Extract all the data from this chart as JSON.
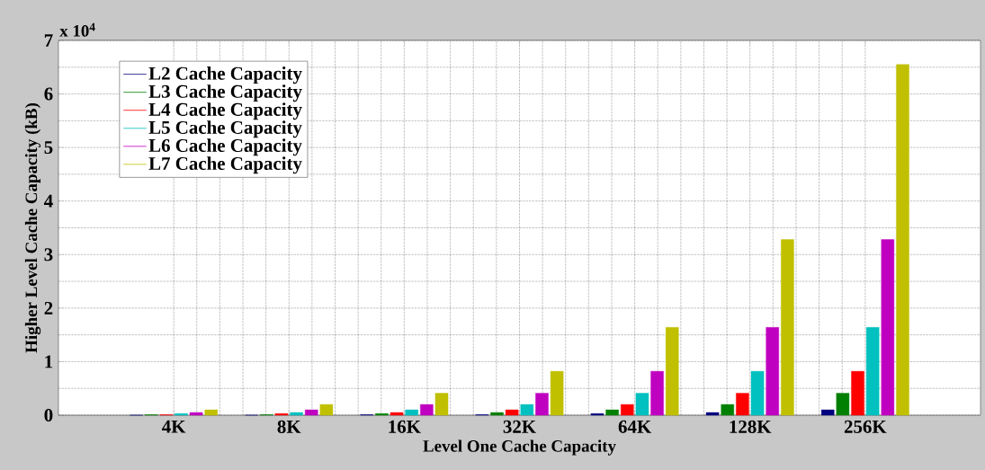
{
  "chart_data": {
    "type": "bar",
    "xlabel": "Level One Cache Capacity",
    "ylabel": "Higher Level Cache Capacity (kB)",
    "annotations": [
      "x 10$^{4}$"
    ],
    "categories": [
      "4K",
      "8K",
      "16K",
      "32K",
      "64K",
      "128K",
      "256K"
    ],
    "series": [
      {
        "name": "L2 Cache Capacity",
        "color": "#000080",
        "values": [
          0,
          0,
          0.01,
          0.01,
          0.03,
          0.05,
          0.1
        ]
      },
      {
        "name": "L3 Cache Capacity",
        "color": "#008000",
        "values": [
          0.01,
          0.01,
          0.03,
          0.05,
          0.1,
          0.2,
          0.41
        ]
      },
      {
        "name": "L4 Cache Capacity",
        "color": "#ff0000",
        "values": [
          0.01,
          0.03,
          0.05,
          0.1,
          0.2,
          0.41,
          0.82
        ]
      },
      {
        "name": "L5 Cache Capacity",
        "color": "#00c0c0",
        "values": [
          0.03,
          0.05,
          0.1,
          0.2,
          0.41,
          0.82,
          1.64
        ]
      },
      {
        "name": "L6 Cache Capacity",
        "color": "#c000c0",
        "values": [
          0.05,
          0.1,
          0.2,
          0.41,
          0.82,
          1.64,
          3.28
        ]
      },
      {
        "name": "L7 Cache Capacity",
        "color": "#c0c000",
        "values": [
          0.1,
          0.2,
          0.41,
          0.82,
          1.64,
          3.28,
          6.55
        ]
      }
    ],
    "ylim": [
      0,
      7
    ],
    "yticks": [
      0,
      1,
      2,
      3,
      4,
      5,
      6,
      7
    ],
    "grid": true,
    "legend": "top left"
  }
}
